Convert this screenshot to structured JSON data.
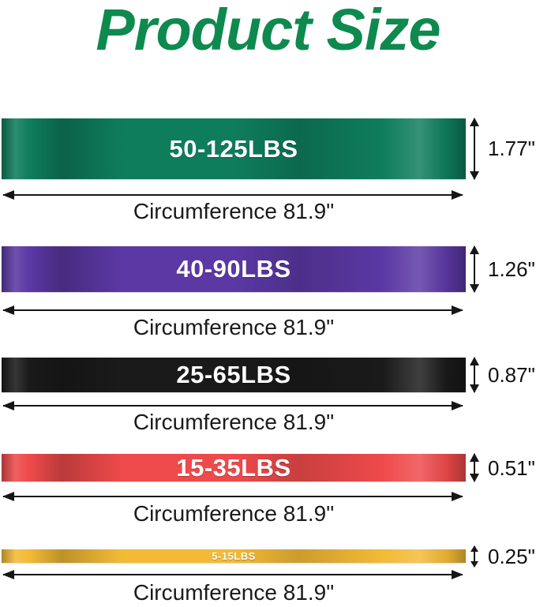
{
  "title": {
    "text": "Product Size",
    "color": "#0e8a4f"
  },
  "bands": [
    {
      "name": "green",
      "label": "50-125LBS",
      "height_label": "1.77\"",
      "circumference_label": "Circumference 81.9\"",
      "color": "#0e7d5c"
    },
    {
      "name": "purple",
      "label": "40-90LBS",
      "height_label": "1.26\"",
      "circumference_label": "Circumference 81.9\"",
      "color": "#5b38a4"
    },
    {
      "name": "black",
      "label": "25-65LBS",
      "height_label": "0.87\"",
      "circumference_label": "Circumference 81.9\"",
      "color": "#1a1a1a"
    },
    {
      "name": "red",
      "label": "15-35LBS",
      "height_label": "0.51\"",
      "circumference_label": "Circumference 81.9\"",
      "color": "#ef4a4b"
    },
    {
      "name": "yellow",
      "label": "5-15LBS",
      "height_label": "0.25\"",
      "circumference_label": "Circumference 81.9\"",
      "color": "#f3ba36"
    }
  ]
}
